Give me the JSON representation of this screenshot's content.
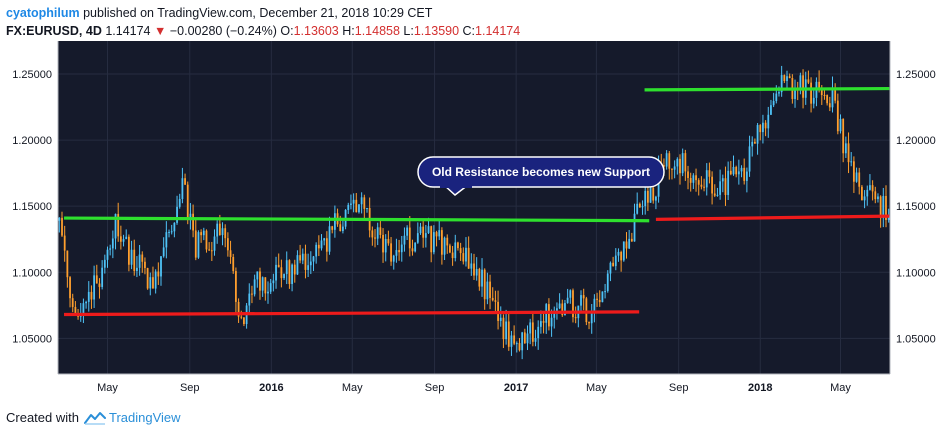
{
  "header": {
    "author": "cyatophilum",
    "published": "published on TradingView.com, December 21, 2018 10:29 CET",
    "symbol": "FX:EURUSD, 4D",
    "last": "1.14174",
    "change": "−0.00280 (−0.24%)",
    "o_label": "O:",
    "o_value": "1.13603",
    "h_label": "H:",
    "h_value": "1.14858",
    "l_label": "L:",
    "l_value": "1.13590",
    "c_label": "C:",
    "c_value": "1.14174"
  },
  "footer": {
    "created_with": "Created with",
    "brand": "TradingView"
  },
  "colors": {
    "background": "#151a2b",
    "up": "#4fc3f7",
    "down": "#ff9f2e",
    "support": "#ee1b1b",
    "resistance": "#2ee02e",
    "callout": "#1a237e"
  },
  "chart_data": {
    "type": "candlestick",
    "symbol": "FX:EURUSD",
    "timeframe": "4D",
    "y_ticks": [
      "1.25000",
      "1.20000",
      "1.15000",
      "1.10000",
      "1.05000"
    ],
    "ylim": [
      1.023,
      1.275
    ],
    "x_ticks": [
      "May",
      "Sep",
      "2016",
      "May",
      "Sep",
      "2017",
      "May",
      "Sep",
      "2018",
      "May"
    ],
    "x_tick_dates": [
      "2015-05-01",
      "2015-09-01",
      "2016-01-01",
      "2016-05-01",
      "2016-09-01",
      "2017-01-01",
      "2017-05-01",
      "2017-09-01",
      "2018-01-01",
      "2018-05-01"
    ],
    "xlim": [
      "2015-02-16",
      "2018-07-14"
    ],
    "annotation": "Old Resistance becomes new Support",
    "lines": [
      {
        "color": "red",
        "from": [
          "2015-02-25",
          1.068
        ],
        "to": [
          "2017-07-04",
          1.07
        ]
      },
      {
        "color": "green",
        "from": [
          "2015-02-25",
          1.141
        ],
        "to": [
          "2017-07-19",
          1.139
        ]
      },
      {
        "color": "red",
        "from": [
          "2017-07-29",
          1.14
        ],
        "to": [
          "2018-07-13",
          1.1425
        ]
      },
      {
        "color": "green",
        "from": [
          "2017-07-12",
          1.238
        ],
        "to": [
          "2018-07-13",
          1.239
        ]
      }
    ],
    "close_path": [
      [
        "2015-02-18",
        1.139
      ],
      [
        "2015-03-15",
        1.06
      ],
      [
        "2015-04-13",
        1.09
      ],
      [
        "2015-05-13",
        1.135
      ],
      [
        "2015-06-02",
        1.115
      ],
      [
        "2015-07-07",
        1.09
      ],
      [
        "2015-08-24",
        1.165
      ],
      [
        "2015-09-07",
        1.12
      ],
      [
        "2015-10-20",
        1.13
      ],
      [
        "2015-11-20",
        1.06
      ],
      [
        "2015-12-10",
        1.09
      ],
      [
        "2016-02-01",
        1.1
      ],
      [
        "2016-03-15",
        1.12
      ],
      [
        "2016-05-03",
        1.155
      ],
      [
        "2016-06-06",
        1.13
      ],
      [
        "2016-06-24",
        1.115
      ],
      [
        "2016-08-15",
        1.13
      ],
      [
        "2016-09-15",
        1.12
      ],
      [
        "2016-11-03",
        1.105
      ],
      [
        "2016-12-03",
        1.065
      ],
      [
        "2017-01-02",
        1.04
      ],
      [
        "2017-02-10",
        1.065
      ],
      [
        "2017-03-20",
        1.078
      ],
      [
        "2017-04-20",
        1.07
      ],
      [
        "2017-05-15",
        1.095
      ],
      [
        "2017-06-15",
        1.125
      ],
      [
        "2017-07-20",
        1.16
      ],
      [
        "2017-08-20",
        1.185
      ],
      [
        "2017-10-05",
        1.175
      ],
      [
        "2017-11-05",
        1.162
      ],
      [
        "2017-12-08",
        1.18
      ],
      [
        "2018-01-16",
        1.22
      ],
      [
        "2018-02-05",
        1.245
      ],
      [
        "2018-03-20",
        1.235
      ],
      [
        "2018-04-20",
        1.235
      ],
      [
        "2018-05-10",
        1.185
      ],
      [
        "2018-05-30",
        1.165
      ],
      [
        "2018-06-20",
        1.158
      ],
      [
        "2018-07-13",
        1.1417
      ]
    ]
  }
}
